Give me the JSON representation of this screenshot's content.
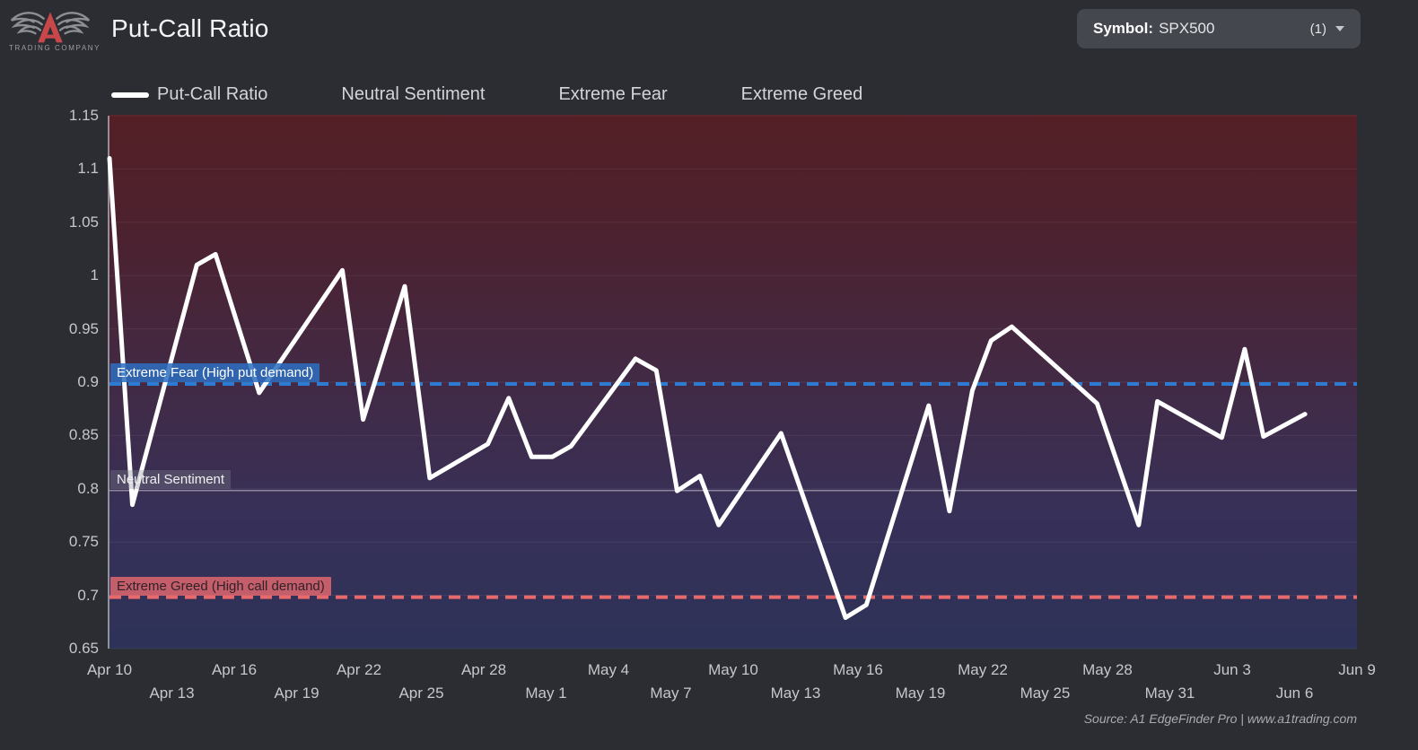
{
  "header": {
    "title": "Put-Call Ratio",
    "logo_text": "TRADING COMPANY",
    "symbol_selector": {
      "label": "Symbol:",
      "value": "SPX500",
      "count": "(1)"
    }
  },
  "legend": {
    "items": [
      {
        "label": "Put-Call Ratio",
        "swatch_color": "#ffffff"
      },
      {
        "label": "Neutral Sentiment"
      },
      {
        "label": "Extreme Fear"
      },
      {
        "label": "Extreme Greed"
      }
    ]
  },
  "footer": {
    "source": "Source: A1 EdgeFinder Pro | www.a1trading.com"
  },
  "chart_data": {
    "type": "line",
    "title": "Put-Call Ratio",
    "ylabel": "",
    "xlabel": "",
    "ylim": [
      0.65,
      1.15
    ],
    "xlim_days": [
      0,
      60
    ],
    "grid": "horizontal-faint",
    "legend_position": "top",
    "y_ticks": [
      {
        "label": "1.15",
        "value": 1.15
      },
      {
        "label": "1.1",
        "value": 1.1
      },
      {
        "label": "1.05",
        "value": 1.05
      },
      {
        "label": "1",
        "value": 1.0
      },
      {
        "label": "0.95",
        "value": 0.95
      },
      {
        "label": "0.9",
        "value": 0.9
      },
      {
        "label": "0.85",
        "value": 0.85
      },
      {
        "label": "0.8",
        "value": 0.8
      },
      {
        "label": "0.75",
        "value": 0.75
      },
      {
        "label": "0.7",
        "value": 0.7
      },
      {
        "label": "0.65",
        "value": 0.65
      }
    ],
    "x_ticks_row1": [
      {
        "label": "Apr 10",
        "day": 0
      },
      {
        "label": "Apr 16",
        "day": 6
      },
      {
        "label": "Apr 22",
        "day": 12
      },
      {
        "label": "Apr 28",
        "day": 18
      },
      {
        "label": "May 4",
        "day": 24
      },
      {
        "label": "May 10",
        "day": 30
      },
      {
        "label": "May 16",
        "day": 36
      },
      {
        "label": "May 22",
        "day": 42
      },
      {
        "label": "May 28",
        "day": 48
      },
      {
        "label": "Jun 3",
        "day": 54
      },
      {
        "label": "Jun 9",
        "day": 60
      }
    ],
    "x_ticks_row2": [
      {
        "label": "Apr 13",
        "day": 3
      },
      {
        "label": "Apr 19",
        "day": 9
      },
      {
        "label": "Apr 25",
        "day": 15
      },
      {
        "label": "May 1",
        "day": 21
      },
      {
        "label": "May 7",
        "day": 27
      },
      {
        "label": "May 13",
        "day": 33
      },
      {
        "label": "May 19",
        "day": 39
      },
      {
        "label": "May 25",
        "day": 45
      },
      {
        "label": "May 31",
        "day": 51
      },
      {
        "label": "Jun 6",
        "day": 57
      }
    ],
    "series": [
      {
        "name": "Put-Call Ratio",
        "color": "#ffffff",
        "points": [
          {
            "date": "Apr 10",
            "day": 0,
            "value": 1.11
          },
          {
            "date": "Apr 11",
            "day": 1.1,
            "value": 0.785
          },
          {
            "date": "Apr 14",
            "day": 4.2,
            "value": 1.01
          },
          {
            "date": "Apr 15",
            "day": 5.1,
            "value": 1.02
          },
          {
            "date": "Apr 17",
            "day": 7.2,
            "value": 0.89
          },
          {
            "date": "Apr 21",
            "day": 11.2,
            "value": 1.005
          },
          {
            "date": "Apr 22",
            "day": 12.2,
            "value": 0.865
          },
          {
            "date": "Apr 24",
            "day": 14.2,
            "value": 0.99
          },
          {
            "date": "Apr 25",
            "day": 15.4,
            "value": 0.81
          },
          {
            "date": "Apr 28",
            "day": 18.2,
            "value": 0.842
          },
          {
            "date": "Apr 29",
            "day": 19.2,
            "value": 0.885
          },
          {
            "date": "Apr 30",
            "day": 20.3,
            "value": 0.83
          },
          {
            "date": "May 1",
            "day": 21.3,
            "value": 0.83
          },
          {
            "date": "May 2",
            "day": 22.2,
            "value": 0.84
          },
          {
            "date": "May 5",
            "day": 25.3,
            "value": 0.922
          },
          {
            "date": "May 6",
            "day": 26.3,
            "value": 0.911
          },
          {
            "date": "May 7",
            "day": 27.3,
            "value": 0.798
          },
          {
            "date": "May 8",
            "day": 28.4,
            "value": 0.812
          },
          {
            "date": "May 9",
            "day": 29.3,
            "value": 0.766
          },
          {
            "date": "May 12",
            "day": 32.3,
            "value": 0.852
          },
          {
            "date": "May 15",
            "day": 35.4,
            "value": 0.679
          },
          {
            "date": "May 16",
            "day": 36.4,
            "value": 0.691
          },
          {
            "date": "May 19",
            "day": 39.4,
            "value": 0.878
          },
          {
            "date": "May 20",
            "day": 40.4,
            "value": 0.779
          },
          {
            "date": "May 21",
            "day": 41.5,
            "value": 0.892
          },
          {
            "date": "May 22",
            "day": 42.4,
            "value": 0.939
          },
          {
            "date": "May 23",
            "day": 43.4,
            "value": 0.952
          },
          {
            "date": "May 27",
            "day": 47.5,
            "value": 0.88
          },
          {
            "date": "May 29",
            "day": 49.5,
            "value": 0.766
          },
          {
            "date": "May 30",
            "day": 50.4,
            "value": 0.882
          },
          {
            "date": "Jun 2",
            "day": 53.5,
            "value": 0.848
          },
          {
            "date": "Jun 3",
            "day": 54.6,
            "value": 0.931
          },
          {
            "date": "Jun 4",
            "day": 55.5,
            "value": 0.849
          },
          {
            "date": "Jun 6",
            "day": 57.5,
            "value": 0.87
          }
        ]
      }
    ],
    "reference_lines": [
      {
        "name": "extreme-fear",
        "label": "Extreme Fear (High put demand)",
        "value": 0.9,
        "style": "dashed",
        "color": "#2e7bd2",
        "label_bg": "rgba(45,111,193,0.85)",
        "label_color": "#ffffff"
      },
      {
        "name": "neutral-sentiment",
        "label": "Neutral Sentiment",
        "value": 0.8,
        "style": "solid",
        "color": "rgba(222,224,230,0.5)",
        "label_bg": "rgba(135,138,146,0.32)",
        "label_color": "#eff0f2"
      },
      {
        "name": "extreme-greed",
        "label": "Extreme Greed (High call demand)",
        "value": 0.7,
        "style": "dashed",
        "color": "#e8696b",
        "label_bg": "rgba(233,106,111,0.8)",
        "label_color": "#2e2228"
      }
    ],
    "background_gradient": [
      "#541f25",
      "#4b2231",
      "#422a45",
      "#373058",
      "#2e3258"
    ]
  }
}
